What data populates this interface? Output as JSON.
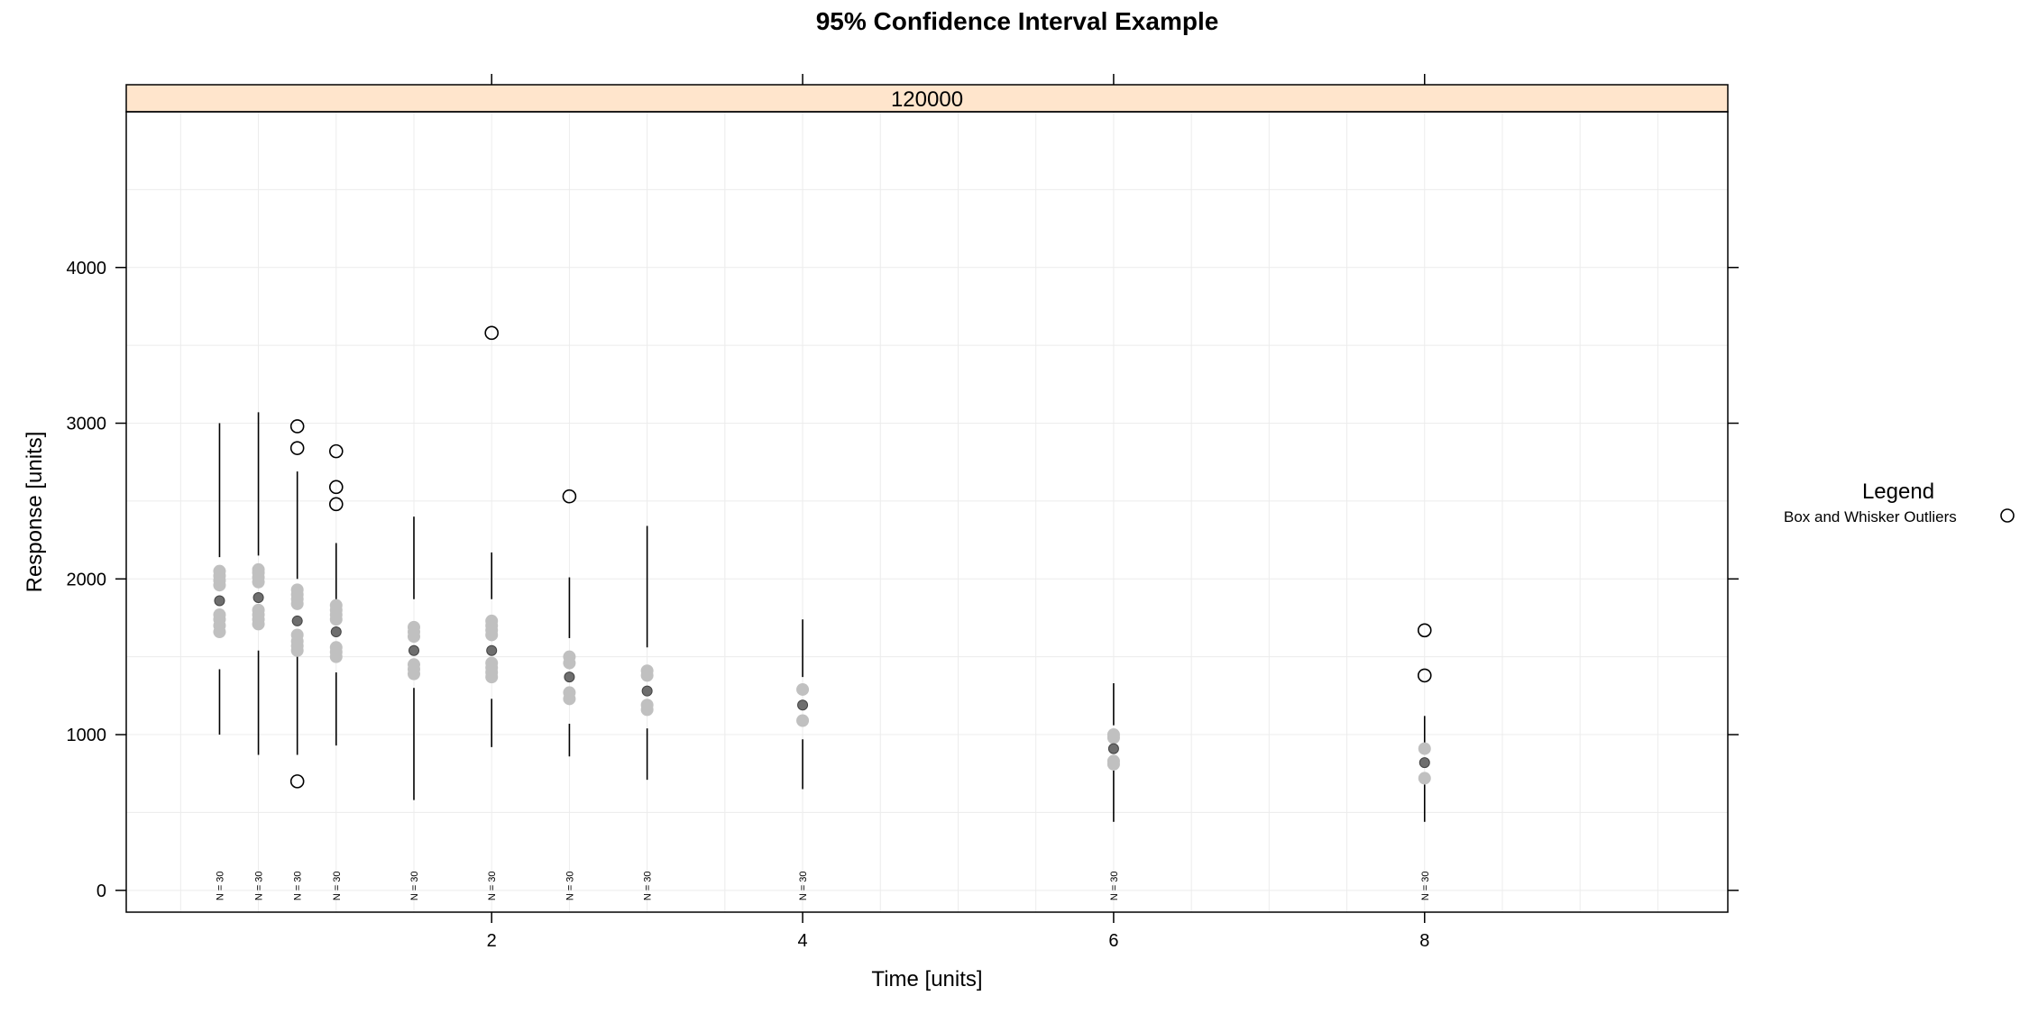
{
  "chart_data": {
    "type": "box",
    "title": "95% Confidence Interval Example",
    "panel_strip": "120000",
    "xlabel": "Time [units]",
    "ylabel": "Response [units]",
    "xlim": [
      -0.35,
      9.95
    ],
    "ylim": [
      -140,
      5000
    ],
    "x_ticks": [
      2,
      4,
      6,
      8
    ],
    "y_ticks": [
      0,
      1000,
      2000,
      3000,
      4000
    ],
    "grid": true,
    "legend": {
      "title": "Legend",
      "placement": "right",
      "items": [
        {
          "label": "Box and Whisker Outliers",
          "symbol": "open-circle"
        }
      ]
    },
    "colors": {
      "strip": "#ffe5cc",
      "ci_points": "#c0c0c0",
      "mean_point": "#6e6e6e",
      "grid": "#ececec"
    },
    "groups": [
      {
        "x": 0.25,
        "n_label": "N = 30",
        "whisker_low": 1000,
        "lower_end": 1420,
        "upper_start": 2140,
        "whisker_high": 3000,
        "mean": 1860,
        "ci_low": [
          1660,
          1700,
          1740,
          1770
        ],
        "ci_high": [
          1960,
          1990,
          2020,
          2050
        ],
        "outliers": []
      },
      {
        "x": 0.5,
        "n_label": "N = 30",
        "whisker_low": 870,
        "lower_end": 1540,
        "upper_start": 2150,
        "whisker_high": 3070,
        "mean": 1880,
        "ci_low": [
          1710,
          1740,
          1770,
          1800
        ],
        "ci_high": [
          1980,
          2010,
          2040,
          2060
        ],
        "outliers": []
      },
      {
        "x": 0.75,
        "n_label": "N = 30",
        "whisker_low": 870,
        "lower_end": 1520,
        "upper_start": 2000,
        "whisker_high": 2690,
        "mean": 1730,
        "ci_low": [
          1540,
          1570,
          1600,
          1640
        ],
        "ci_high": [
          1840,
          1870,
          1900,
          1930
        ],
        "outliers": [
          700,
          2840,
          2980
        ]
      },
      {
        "x": 1.0,
        "n_label": "N = 30",
        "whisker_low": 930,
        "lower_end": 1400,
        "upper_start": 1850,
        "whisker_high": 2230,
        "mean": 1660,
        "ci_low": [
          1500,
          1530,
          1560
        ],
        "ci_high": [
          1740,
          1770,
          1800,
          1830
        ],
        "outliers": [
          2480,
          2590,
          2820
        ]
      },
      {
        "x": 1.5,
        "n_label": "N = 30",
        "whisker_low": 580,
        "lower_end": 1300,
        "upper_start": 1870,
        "whisker_high": 2400,
        "mean": 1540,
        "ci_low": [
          1390,
          1420,
          1450
        ],
        "ci_high": [
          1630,
          1660,
          1690
        ],
        "outliers": []
      },
      {
        "x": 2.0,
        "n_label": "N = 30",
        "whisker_low": 920,
        "lower_end": 1230,
        "upper_start": 1870,
        "whisker_high": 2170,
        "mean": 1540,
        "ci_low": [
          1370,
          1400,
          1430,
          1460
        ],
        "ci_high": [
          1640,
          1670,
          1700,
          1730
        ],
        "outliers": [
          3580
        ]
      },
      {
        "x": 2.5,
        "n_label": "N = 30",
        "whisker_low": 860,
        "lower_end": 1070,
        "upper_start": 1620,
        "whisker_high": 2010,
        "mean": 1370,
        "ci_low": [
          1230,
          1270
        ],
        "ci_high": [
          1460,
          1500
        ],
        "outliers": [
          2530
        ]
      },
      {
        "x": 3.0,
        "n_label": "N = 30",
        "whisker_low": 710,
        "lower_end": 1040,
        "upper_start": 1560,
        "whisker_high": 2340,
        "mean": 1280,
        "ci_low": [
          1160,
          1190
        ],
        "ci_high": [
          1380,
          1410
        ],
        "outliers": []
      },
      {
        "x": 4.0,
        "n_label": "N = 30",
        "whisker_low": 650,
        "lower_end": 970,
        "upper_start": 1370,
        "whisker_high": 1740,
        "mean": 1190,
        "ci_low": [
          1090
        ],
        "ci_high": [
          1290
        ],
        "outliers": []
      },
      {
        "x": 6.0,
        "n_label": "N = 30",
        "whisker_low": 440,
        "lower_end": 770,
        "upper_start": 1060,
        "whisker_high": 1330,
        "mean": 910,
        "ci_low": [
          810,
          830
        ],
        "ci_high": [
          980,
          1000
        ],
        "outliers": []
      },
      {
        "x": 8.0,
        "n_label": "N = 30",
        "whisker_low": 440,
        "lower_end": 680,
        "upper_start": 940,
        "whisker_high": 1120,
        "mean": 820,
        "ci_low": [
          720
        ],
        "ci_high": [
          910
        ],
        "outliers": [
          1380,
          1670
        ]
      }
    ]
  }
}
